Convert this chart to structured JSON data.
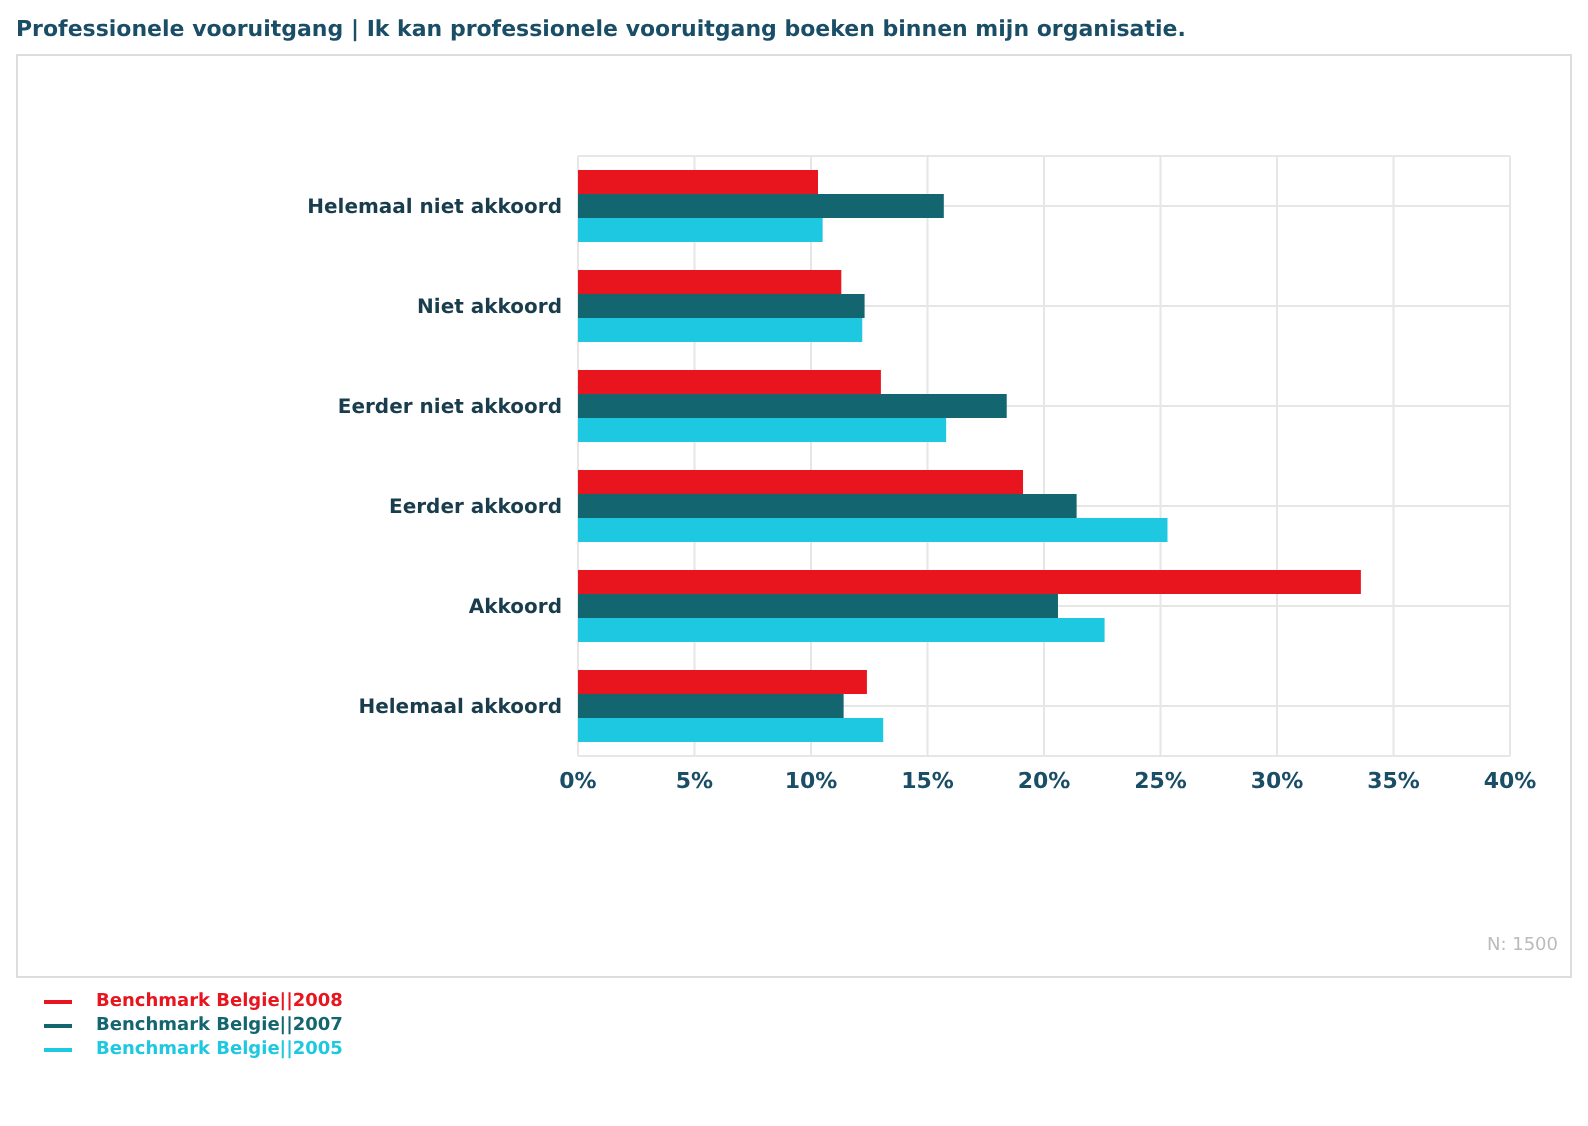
{
  "chart_data": {
    "type": "bar",
    "orientation": "horizontal",
    "title": "Professionele vooruitgang | Ik kan professionele vooruitgang boeken binnen mijn organisatie.",
    "categories": [
      "Helemaal niet akkoord",
      "Niet akkoord",
      "Eerder niet akkoord",
      "Eerder akkoord",
      "Akkoord",
      "Helemaal akkoord"
    ],
    "series": [
      {
        "name": "Benchmark Belgie||2008",
        "color": "#e8141e",
        "values": [
          10.3,
          11.3,
          13.0,
          19.1,
          33.6,
          12.4
        ]
      },
      {
        "name": "Benchmark Belgie||2007",
        "color": "#13666f",
        "values": [
          15.7,
          12.3,
          18.4,
          21.4,
          20.6,
          11.4
        ]
      },
      {
        "name": "Benchmark Belgie||2005",
        "color": "#1ec8e0",
        "values": [
          10.5,
          12.2,
          15.8,
          25.3,
          22.6,
          13.1
        ]
      }
    ],
    "xlim": [
      0,
      40
    ],
    "xticks": [
      {
        "value": 0,
        "label": "0%"
      },
      {
        "value": 5,
        "label": "5%"
      },
      {
        "value": 10,
        "label": "10%"
      },
      {
        "value": 15,
        "label": "15%"
      },
      {
        "value": 20,
        "label": "20%"
      },
      {
        "value": 25,
        "label": "25%"
      },
      {
        "value": 30,
        "label": "30%"
      },
      {
        "value": 35,
        "label": "35%"
      },
      {
        "value": 40,
        "label": "40%"
      }
    ],
    "grid": true,
    "legend": "bottom left",
    "annotations": [
      "N: 1500"
    ]
  }
}
